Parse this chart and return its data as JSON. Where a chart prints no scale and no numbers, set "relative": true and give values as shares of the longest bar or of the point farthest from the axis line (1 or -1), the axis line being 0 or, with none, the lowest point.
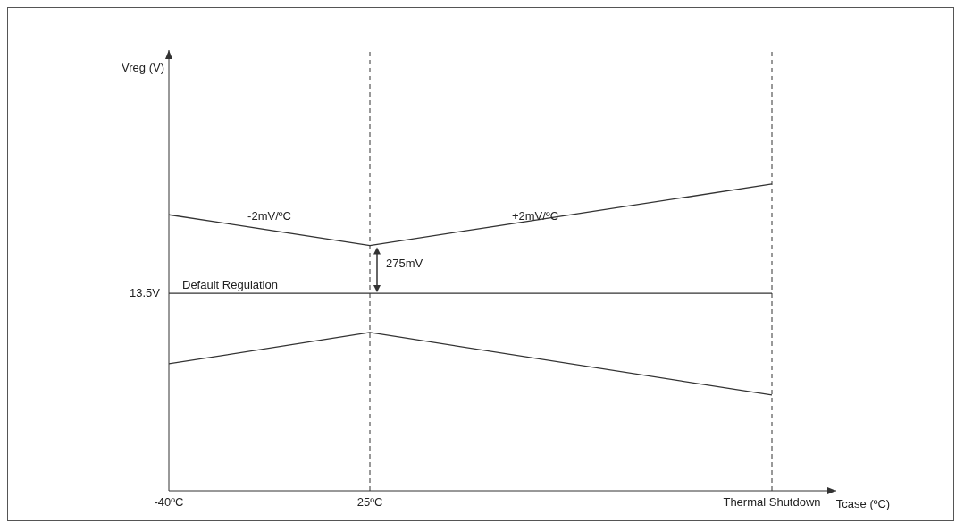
{
  "chart_data": {
    "type": "line",
    "relative": true,
    "xlabel": "Tcase (ºC)",
    "categories": [
      "-40ºC",
      "25ºC",
      null,
      "Thermal Shutdown"
    ],
    "series": [
      {
        "color": "#333333",
        "values": [
          0.9,
          0.8,
          null,
          1.0
        ]
      },
      {
        "color": "#333333",
        "values": [
          0.644,
          0.644,
          null,
          0.644
        ]
      },
      {
        "color": "#333333",
        "values": [
          0.414,
          0.516,
          null,
          0.312
        ]
      }
    ],
    "ref_lines": [
      {
        "axis": "x",
        "value": "25ºC",
        "line_style": "dashed",
        "color": "#333333"
      },
      {
        "axis": "x",
        "value": "Thermal Shutdown",
        "line_style": "dashed",
        "color": "#333333"
      }
    ],
    "annotations": [
      "13.5V",
      "-2mV/ºC",
      "+2mV/ºC",
      "275mV",
      "Default Regulation",
      "Vreg (V)"
    ],
    "marker": "none",
    "line_style": "solid",
    "legend": false,
    "grid": false
  }
}
